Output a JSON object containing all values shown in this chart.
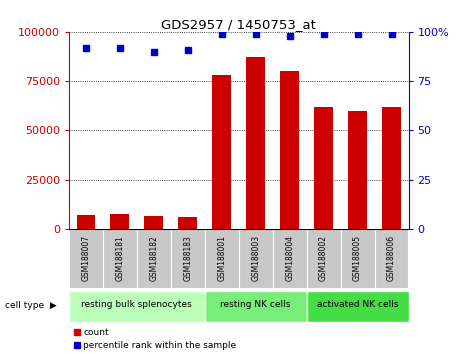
{
  "title": "GDS2957 / 1450753_at",
  "samples": [
    "GSM188007",
    "GSM188181",
    "GSM188182",
    "GSM188183",
    "GSM188001",
    "GSM188003",
    "GSM188004",
    "GSM188002",
    "GSM188005",
    "GSM188006"
  ],
  "counts": [
    7000,
    7500,
    6500,
    6000,
    78000,
    87000,
    80000,
    62000,
    60000,
    62000
  ],
  "percentiles": [
    92,
    92,
    90,
    91,
    99,
    99,
    98,
    99,
    99,
    99
  ],
  "cell_types": [
    {
      "label": "resting bulk splenocytes",
      "n_samples": 4,
      "color": "#bbffbb"
    },
    {
      "label": "resting NK cells",
      "n_samples": 3,
      "color": "#77ee77"
    },
    {
      "label": "activated NK cells",
      "n_samples": 3,
      "color": "#44dd44"
    }
  ],
  "bar_color": "#cc0000",
  "scatter_color": "#0000cc",
  "left_axis_color": "#cc0000",
  "right_axis_color": "#0000cc",
  "ylim_left": [
    0,
    100000
  ],
  "ylim_right": [
    0,
    100
  ],
  "yticks_left": [
    0,
    25000,
    50000,
    75000,
    100000
  ],
  "ytick_labels_left": [
    "0",
    "25000",
    "50000",
    "75000",
    "100000"
  ],
  "yticks_right": [
    0,
    25,
    50,
    75,
    100
  ],
  "ytick_labels_right": [
    "0",
    "25",
    "50",
    "75",
    "100%"
  ],
  "bg_color": "#ffffff",
  "sample_bg_color": "#c8c8c8",
  "grid_color": "#000000"
}
